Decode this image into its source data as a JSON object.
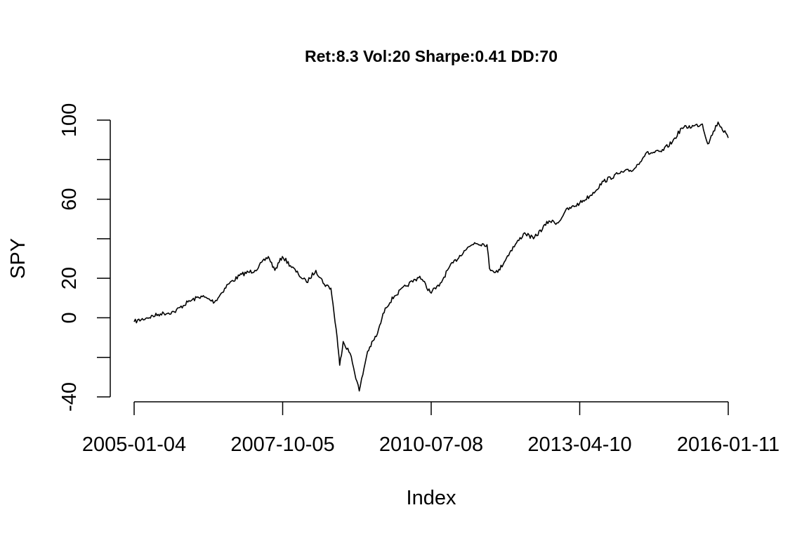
{
  "chart_data": {
    "type": "line",
    "title": "Ret:8.3 Vol:20 Sharpe:0.41 DD:70",
    "xlabel": "Index",
    "ylabel": "SPY",
    "x_ticks": [
      "2005-01-04",
      "2007-10-05",
      "2010-07-08",
      "2013-04-10",
      "2016-01-11"
    ],
    "y_ticks": [
      -40,
      0,
      20,
      60,
      100
    ],
    "y_minor_ticks": [
      -20,
      40,
      80
    ],
    "xlim": [
      "2005-01-04",
      "2016-01-11"
    ],
    "ylim": [
      -40,
      100
    ],
    "grid": false,
    "line_color": "#000000",
    "series": [
      {
        "x": [
          "2005-01-04",
          "2005-04-01",
          "2005-07-01",
          "2005-10-03",
          "2006-01-03",
          "2006-04-03",
          "2006-07-03",
          "2006-10-02",
          "2007-01-03",
          "2007-04-02",
          "2007-07-02",
          "2007-08-15",
          "2007-10-05",
          "2008-01-22",
          "2008-03-17",
          "2008-05-19",
          "2008-07-15",
          "2008-08-29",
          "2008-10-10",
          "2008-10-27",
          "2008-11-20",
          "2009-01-06",
          "2009-03-09",
          "2009-05-04",
          "2009-07-10",
          "2009-09-01",
          "2009-11-02",
          "2010-01-19",
          "2010-04-23",
          "2010-07-02",
          "2010-09-01",
          "2010-11-04",
          "2011-02-18",
          "2011-04-29",
          "2011-07-22",
          "2011-08-08",
          "2011-10-03",
          "2011-12-30",
          "2012-04-02",
          "2012-06-01",
          "2012-09-14",
          "2012-11-15",
          "2013-01-02",
          "2013-04-10",
          "2013-06-24",
          "2013-09-18",
          "2013-12-31",
          "2014-04-11",
          "2014-06-30",
          "2014-10-15",
          "2014-12-29",
          "2015-03-02",
          "2015-05-21",
          "2015-07-20",
          "2015-08-25",
          "2015-11-03",
          "2016-01-11"
        ],
        "values": [
          -2,
          0,
          2,
          3,
          8,
          11,
          8,
          17,
          22,
          24,
          31,
          24,
          31,
          22,
          18,
          24,
          17,
          15,
          -10,
          -24,
          -12,
          -18,
          -37,
          -17,
          -8,
          5,
          11,
          16,
          21,
          13,
          16,
          25,
          34,
          38,
          37,
          25,
          23,
          34,
          43,
          40,
          49,
          48,
          54,
          58,
          62,
          69,
          73,
          75,
          83,
          84,
          89,
          96,
          97,
          98,
          88,
          99,
          91
        ]
      }
    ]
  }
}
